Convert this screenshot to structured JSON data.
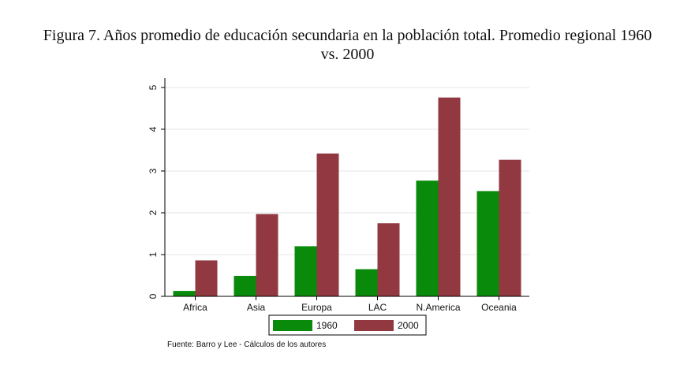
{
  "chart_data": {
    "type": "bar",
    "title": "Figura 7. Años promedio de educación secundaria en la población total. Promedio regional 1960",
    "title_line2": "vs. 2000",
    "categories": [
      "Africa",
      "Asia",
      "Europa",
      "LAC",
      "N.America",
      "Oceania"
    ],
    "series": [
      {
        "name": "1960",
        "color": "#0a8a0a",
        "values": [
          0.13,
          0.49,
          1.2,
          0.65,
          2.77,
          2.52
        ]
      },
      {
        "name": "2000",
        "color": "#923840",
        "values": [
          0.86,
          1.97,
          3.42,
          1.75,
          4.76,
          3.27
        ]
      }
    ],
    "xlabel": "",
    "ylabel": "",
    "ylim": [
      0,
      5
    ],
    "yticks": [
      "0",
      "1",
      "2",
      "3",
      "4",
      "5"
    ],
    "grid": true,
    "legend_position": "bottom",
    "source": "Fuente: Barro y Lee - Cálculos de los autores"
  }
}
